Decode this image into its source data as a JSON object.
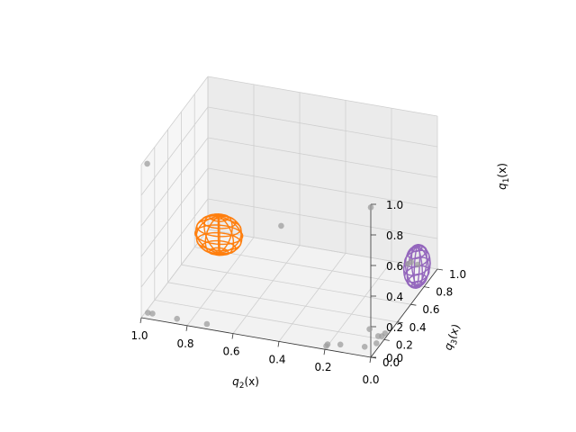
{
  "chart_data": {
    "type": "scatter",
    "projection": "3d",
    "axes": {
      "x": {
        "label": "q_2(x)",
        "label_base": "q",
        "label_sub": "2",
        "label_arg": "(x)",
        "range": [
          0,
          1
        ],
        "ticks": [
          "0.2",
          "0.4",
          "0.6",
          "0.8",
          "1.0"
        ]
      },
      "y": {
        "label": "q_3(x)",
        "label_base": "q",
        "label_sub": "3",
        "label_arg": "(x)",
        "range": [
          0,
          1
        ],
        "ticks": [
          "0.0",
          "0.2",
          "0.4",
          "0.6",
          "0.8",
          "1.0"
        ]
      },
      "z": {
        "label": "q_1(x)",
        "label_base": "q",
        "label_sub": "1",
        "label_arg": "(x)",
        "range": [
          0,
          1
        ],
        "ticks": [
          "0.0",
          "0.2",
          "0.4",
          "0.6",
          "0.8",
          "1.0"
        ]
      },
      "corner_tick": "0.0"
    },
    "grid": true,
    "scatter_points": [
      {
        "x": 0.98,
        "y": 0.02,
        "z": 1.0
      },
      {
        "x": 0.0,
        "y": 0.0,
        "z": 0.98
      },
      {
        "x": 0.55,
        "y": 0.55,
        "z": 0.4
      },
      {
        "x": 0.98,
        "y": 0.03,
        "z": 0.02
      },
      {
        "x": 0.96,
        "y": 0.03,
        "z": 0.02
      },
      {
        "x": 0.85,
        "y": 0.02,
        "z": 0.02
      },
      {
        "x": 0.72,
        "y": 0.02,
        "z": 0.02
      },
      {
        "x": 0.2,
        "y": 0.02,
        "z": 0.01
      },
      {
        "x": 0.2,
        "y": 0.04,
        "z": 0.01
      },
      {
        "x": 0.15,
        "y": 0.06,
        "z": 0.01
      },
      {
        "x": 0.05,
        "y": 0.08,
        "z": 0.01
      },
      {
        "x": 0.02,
        "y": 0.05,
        "z": 0.15
      },
      {
        "x": 0.01,
        "y": 0.12,
        "z": 0.02
      },
      {
        "x": 0.01,
        "y": 0.2,
        "z": 0.02
      },
      {
        "x": 0.02,
        "y": 0.18,
        "z": 0.03
      },
      {
        "x": 0.01,
        "y": 0.25,
        "z": 0.01
      },
      {
        "x": 0.1,
        "y": 0.95,
        "z": 0.05
      },
      {
        "x": 0.08,
        "y": 0.98,
        "z": 0.02
      },
      {
        "x": 0.12,
        "y": 0.97,
        "z": 0.02
      }
    ],
    "scatter_color": "#9e9e9e",
    "ellipsoids": [
      {
        "name": "",
        "color": "#ff7f0e",
        "center": {
          "x": 0.72,
          "y": 0.2,
          "z": 0.5
        },
        "radii": {
          "x": 0.1,
          "y": 0.1,
          "z": 0.12
        }
      },
      {
        "name": "",
        "color": "#9467bd",
        "center": {
          "x": 0.06,
          "y": 0.9,
          "z": 0.06
        },
        "radii": {
          "x": 0.05,
          "y": 0.1,
          "z": 0.13
        }
      }
    ]
  }
}
